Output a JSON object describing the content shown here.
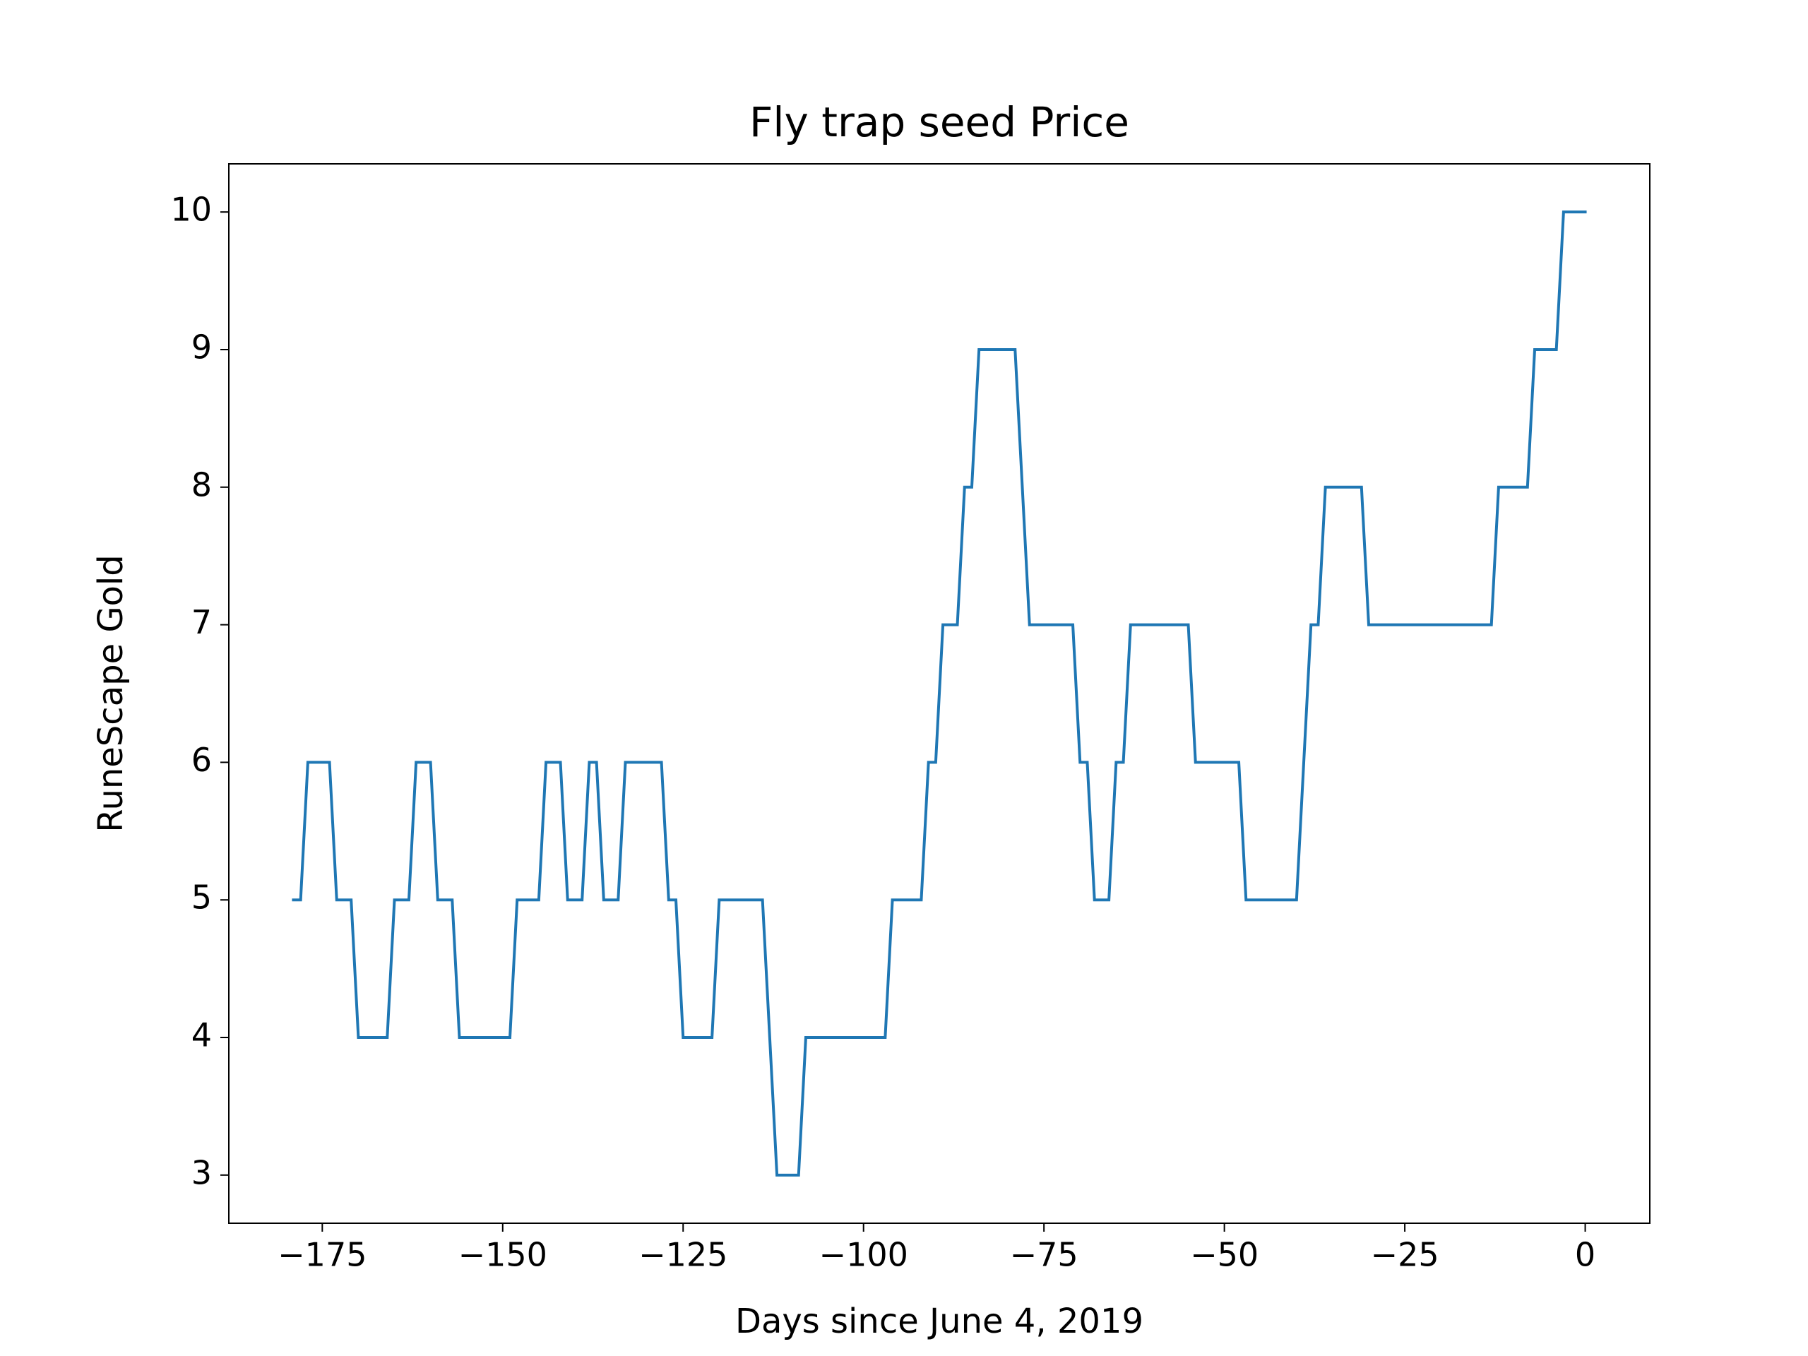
{
  "chart_data": {
    "type": "line",
    "title": "Fly trap seed Price",
    "xlabel": "Days since June 4, 2019",
    "ylabel": "RuneScape Gold",
    "x": [
      -179,
      -178,
      -177,
      -176,
      -175,
      -174,
      -173,
      -172,
      -171,
      -170,
      -169,
      -168,
      -167,
      -166,
      -165,
      -164,
      -163,
      -162,
      -161,
      -160,
      -159,
      -158,
      -157,
      -156,
      -155,
      -154,
      -153,
      -152,
      -151,
      -150,
      -149,
      -148,
      -147,
      -146,
      -145,
      -144,
      -143,
      -142,
      -141,
      -140,
      -139,
      -138,
      -137,
      -136,
      -135,
      -134,
      -133,
      -132,
      -131,
      -130,
      -129,
      -128,
      -127,
      -126,
      -125,
      -124,
      -123,
      -122,
      -121,
      -120,
      -119,
      -118,
      -117,
      -116,
      -115,
      -114,
      -113,
      -112,
      -111,
      -110,
      -109,
      -108,
      -107,
      -106,
      -105,
      -104,
      -103,
      -102,
      -101,
      -100,
      -99,
      -98,
      -97,
      -96,
      -95,
      -94,
      -93,
      -92,
      -91,
      -90,
      -89,
      -88,
      -87,
      -86,
      -85,
      -84,
      -83,
      -82,
      -81,
      -80,
      -79,
      -78,
      -77,
      -76,
      -75,
      -74,
      -73,
      -72,
      -71,
      -70,
      -69,
      -68,
      -67,
      -66,
      -65,
      -64,
      -63,
      -62,
      -61,
      -60,
      -59,
      -58,
      -57,
      -56,
      -55,
      -54,
      -53,
      -52,
      -51,
      -50,
      -49,
      -48,
      -47,
      -46,
      -45,
      -44,
      -43,
      -42,
      -41,
      -40,
      -39,
      -38,
      -37,
      -36,
      -35,
      -34,
      -33,
      -32,
      -31,
      -30,
      -29,
      -28,
      -27,
      -26,
      -25,
      -24,
      -23,
      -22,
      -21,
      -20,
      -19,
      -18,
      -17,
      -16,
      -15,
      -14,
      -13,
      -12,
      -11,
      -10,
      -9,
      -8,
      -7,
      -6,
      -5,
      -4,
      -3,
      -2,
      -1,
      0
    ],
    "series": [
      {
        "color": "#1f77b4",
        "values": [
          5,
          5,
          6,
          6,
          6,
          6,
          5,
          5,
          5,
          4,
          4,
          4,
          4,
          4,
          5,
          5,
          5,
          6,
          6,
          6,
          5,
          5,
          5,
          4,
          4,
          4,
          4,
          4,
          4,
          4,
          4,
          5,
          5,
          5,
          5,
          6,
          6,
          6,
          5,
          5,
          5,
          6,
          6,
          5,
          5,
          5,
          6,
          6,
          6,
          6,
          6,
          6,
          5,
          5,
          4,
          4,
          4,
          4,
          4,
          5,
          5,
          5,
          5,
          5,
          5,
          5,
          4,
          3,
          3,
          3,
          3,
          4,
          4,
          4,
          4,
          4,
          4,
          4,
          4,
          4,
          4,
          4,
          4,
          5,
          5,
          5,
          5,
          5,
          6,
          6,
          7,
          7,
          7,
          8,
          8,
          9,
          9,
          9,
          9,
          9,
          9,
          8,
          7,
          7,
          7,
          7,
          7,
          7,
          7,
          6,
          6,
          5,
          5,
          5,
          6,
          6,
          7,
          7,
          7,
          7,
          7,
          7,
          7,
          7,
          7,
          6,
          6,
          6,
          6,
          6,
          6,
          6,
          5,
          5,
          5,
          5,
          5,
          5,
          5,
          5,
          6,
          7,
          7,
          8,
          8,
          8,
          8,
          8,
          8,
          7,
          7,
          7,
          7,
          7,
          7,
          7,
          7,
          7,
          7,
          7,
          7,
          7,
          7,
          7,
          7,
          7,
          7,
          8,
          8,
          8,
          8,
          8,
          9,
          9,
          9,
          9,
          10,
          10,
          10,
          10
        ]
      }
    ],
    "xlim": [
      -187.95,
      8.95
    ],
    "ylim": [
      2.65,
      10.35
    ],
    "xticks": [
      {
        "value": -175,
        "label": "−175"
      },
      {
        "value": -150,
        "label": "−150"
      },
      {
        "value": -125,
        "label": "−125"
      },
      {
        "value": -100,
        "label": "−100"
      },
      {
        "value": -75,
        "label": "−75"
      },
      {
        "value": -50,
        "label": "−50"
      },
      {
        "value": -25,
        "label": "−25"
      },
      0
    ],
    "yticks": [
      3,
      4,
      5,
      6,
      7,
      8,
      9,
      10
    ],
    "grid": false
  }
}
